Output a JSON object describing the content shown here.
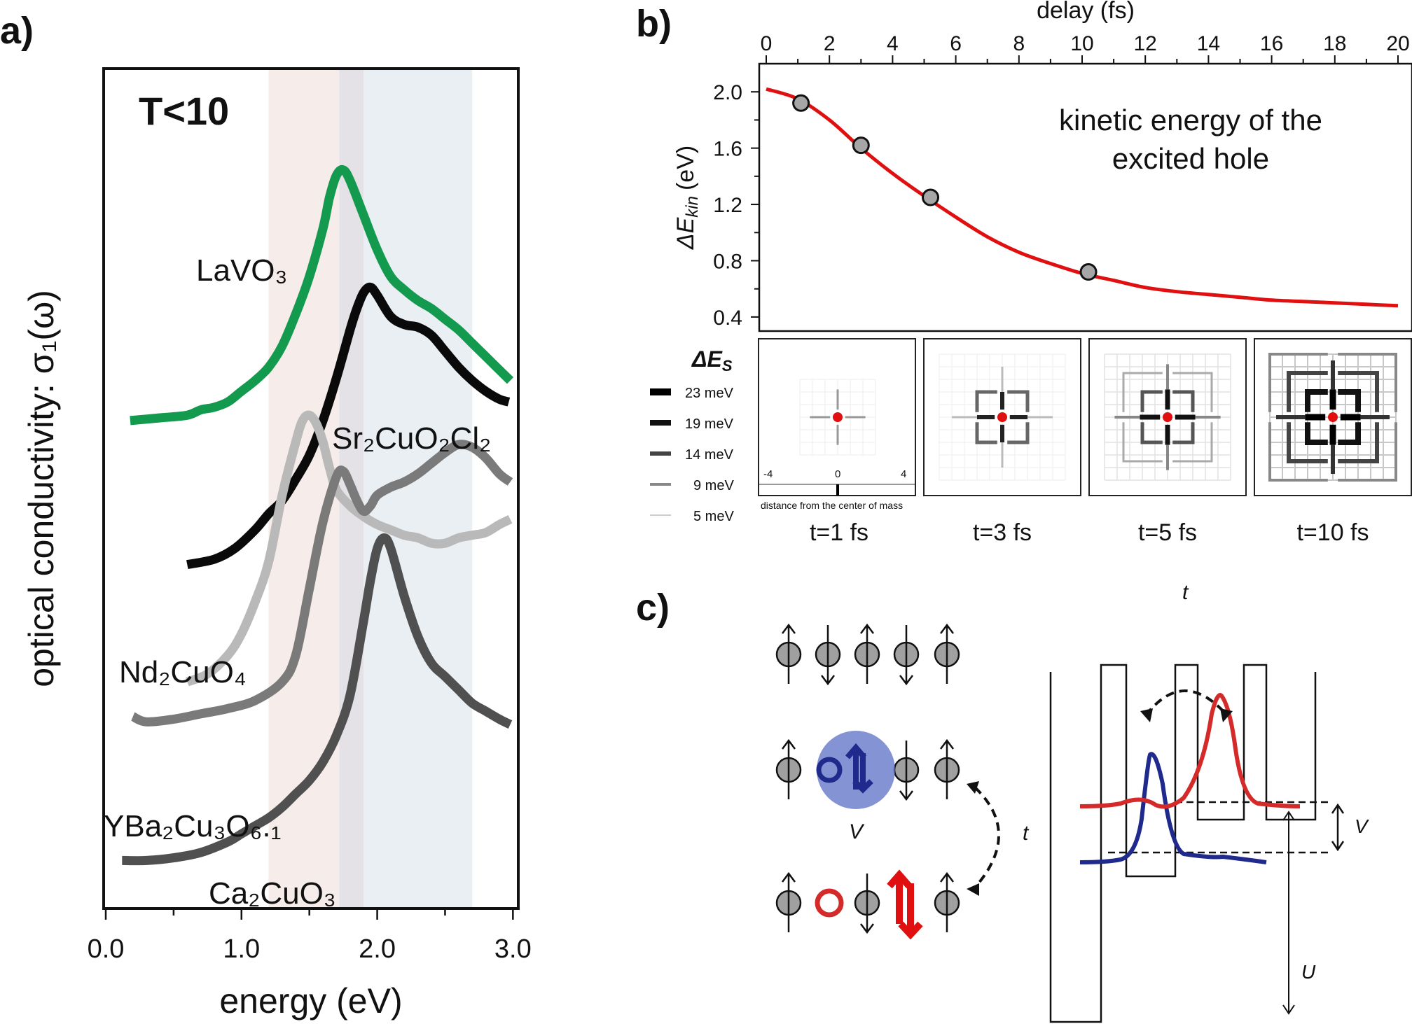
{
  "panel_labels": {
    "a": "a)",
    "b": "b)",
    "c": "c)"
  },
  "colors": {
    "green": "#139a4e",
    "black": "#0a0a0a",
    "lightgray": "#b9b9b9",
    "midgray": "#7a7a7a",
    "darkgray": "#505050",
    "red": "#e01010",
    "blue": "#1f2a8c",
    "marker_fill": "#a6a6a6",
    "band_pink": "#f6ecea",
    "band_gray": "#e4e2e6",
    "band_blue": "#e9eff3"
  },
  "chart_data": [
    {
      "id": "a",
      "type": "line",
      "title": "T<10",
      "xlabel": "energy (eV)",
      "ylabel": "optical conductivity: σ₁(ω)",
      "xlim": [
        0.0,
        3.0
      ],
      "xticks": [
        "0.0",
        "1.0",
        "2.0",
        "3.0"
      ],
      "y_units": "arbitrary (curves offset)",
      "bands_eV": [
        [
          1.2,
          1.72
        ],
        [
          1.72,
          1.9
        ],
        [
          1.9,
          2.7
        ]
      ],
      "series": [
        {
          "name": "LaVO₃",
          "color_key": "green",
          "x": [
            0.18,
            0.4,
            0.6,
            0.7,
            0.8,
            0.9,
            1.0,
            1.1,
            1.2,
            1.3,
            1.4,
            1.5,
            1.6,
            1.65,
            1.7,
            1.75,
            1.8,
            1.9,
            2.0,
            2.1,
            2.2,
            2.3,
            2.4,
            2.5,
            2.6,
            2.7,
            2.8,
            2.9,
            2.98
          ],
          "y": [
            0.08,
            0.09,
            0.1,
            0.12,
            0.13,
            0.15,
            0.19,
            0.23,
            0.28,
            0.36,
            0.48,
            0.62,
            0.8,
            0.92,
            1.0,
            1.02,
            0.98,
            0.85,
            0.72,
            0.62,
            0.57,
            0.53,
            0.5,
            0.46,
            0.42,
            0.37,
            0.32,
            0.27,
            0.23
          ]
        },
        {
          "name": "Sr₂CuO₂Cl₂",
          "color_key": "black",
          "x": [
            0.6,
            0.8,
            0.95,
            1.1,
            1.2,
            1.3,
            1.4,
            1.5,
            1.6,
            1.7,
            1.8,
            1.85,
            1.9,
            1.95,
            2.0,
            2.1,
            2.2,
            2.3,
            2.4,
            2.5,
            2.6,
            2.7,
            2.8,
            2.9,
            2.97
          ],
          "y": [
            -0.46,
            -0.44,
            -0.4,
            -0.33,
            -0.27,
            -0.22,
            -0.14,
            -0.05,
            0.08,
            0.24,
            0.42,
            0.5,
            0.56,
            0.58,
            0.55,
            0.47,
            0.44,
            0.43,
            0.4,
            0.34,
            0.28,
            0.23,
            0.19,
            0.16,
            0.15
          ]
        },
        {
          "name": "Nd₂CuO₄",
          "color_key": "lightgray",
          "x": [
            0.6,
            0.75,
            0.9,
            1.0,
            1.1,
            1.2,
            1.3,
            1.4,
            1.45,
            1.5,
            1.55,
            1.6,
            1.65,
            1.7,
            1.8,
            1.9,
            2.0,
            2.1,
            2.2,
            2.3,
            2.4,
            2.5,
            2.6,
            2.7,
            2.8,
            2.9,
            2.98
          ],
          "y": [
            -0.9,
            -0.87,
            -0.8,
            -0.72,
            -0.6,
            -0.45,
            -0.2,
            0.0,
            0.08,
            0.1,
            0.07,
            0.0,
            -0.1,
            -0.18,
            -0.24,
            -0.28,
            -0.31,
            -0.33,
            -0.35,
            -0.36,
            -0.38,
            -0.38,
            -0.36,
            -0.35,
            -0.34,
            -0.31,
            -0.29
          ]
        },
        {
          "name": "YBa₂Cu₃O₆.₁",
          "color_key": "midgray",
          "x": [
            0.2,
            0.3,
            0.5,
            0.7,
            0.9,
            1.1,
            1.3,
            1.4,
            1.5,
            1.6,
            1.7,
            1.75,
            1.8,
            1.85,
            1.9,
            1.95,
            2.0,
            2.1,
            2.2,
            2.3,
            2.4,
            2.5,
            2.6,
            2.7,
            2.8,
            2.9,
            2.98
          ],
          "y": [
            -1.03,
            -1.05,
            -1.04,
            -1.02,
            -1.0,
            -0.97,
            -0.9,
            -0.8,
            -0.55,
            -0.3,
            -0.13,
            -0.11,
            -0.16,
            -0.22,
            -0.26,
            -0.24,
            -0.2,
            -0.17,
            -0.15,
            -0.12,
            -0.08,
            -0.04,
            -0.01,
            -0.02,
            -0.06,
            -0.12,
            -0.15
          ]
        },
        {
          "name": "Ca₂CuO₃",
          "color_key": "darkgray",
          "x": [
            0.12,
            0.3,
            0.5,
            0.7,
            0.9,
            1.0,
            1.1,
            1.2,
            1.3,
            1.4,
            1.5,
            1.6,
            1.7,
            1.8,
            1.9,
            1.95,
            2.0,
            2.05,
            2.1,
            2.2,
            2.3,
            2.4,
            2.5,
            2.6,
            2.7,
            2.8,
            2.9,
            2.98
          ],
          "y": [
            -1.57,
            -1.57,
            -1.56,
            -1.54,
            -1.5,
            -1.47,
            -1.44,
            -1.41,
            -1.37,
            -1.32,
            -1.27,
            -1.2,
            -1.1,
            -0.95,
            -0.67,
            -0.52,
            -0.4,
            -0.36,
            -0.4,
            -0.58,
            -0.73,
            -0.83,
            -0.88,
            -0.93,
            -0.98,
            -1.01,
            -1.04,
            -1.06
          ]
        }
      ],
      "ylim": [
        -1.75,
        1.4
      ]
    },
    {
      "id": "b",
      "type": "line",
      "xlabel": "delay (fs)",
      "ylabel": "ΔE",
      "ylabel_sub": "kin",
      "ylabel_unit": "(eV)",
      "xlim": [
        0,
        20
      ],
      "ylim": [
        0.3,
        2.2
      ],
      "xticks": [
        "0",
        "2",
        "4",
        "6",
        "8",
        "10",
        "12",
        "14",
        "16",
        "18",
        "20"
      ],
      "yticks": [
        "0.4",
        "0.8",
        "1.2",
        "1.6",
        "2.0"
      ],
      "annotation": [
        "kinetic energy of the",
        "excited hole"
      ],
      "series": [
        {
          "color_key": "red",
          "x": [
            0,
            1,
            2,
            3,
            4,
            5,
            6,
            7,
            8,
            9,
            10,
            11,
            12,
            13,
            14,
            15,
            16,
            17,
            18,
            19,
            20
          ],
          "y": [
            2.02,
            1.95,
            1.8,
            1.6,
            1.42,
            1.26,
            1.11,
            0.97,
            0.86,
            0.78,
            0.71,
            0.66,
            0.61,
            0.58,
            0.56,
            0.54,
            0.52,
            0.51,
            0.5,
            0.49,
            0.48
          ]
        },
        {
          "type": "scatter",
          "color_key": "marker_fill",
          "x": [
            1.1,
            3.0,
            5.2,
            10.2
          ],
          "y": [
            1.92,
            1.62,
            1.25,
            0.72
          ]
        }
      ]
    }
  ],
  "panel_b_maps": {
    "legend_title": "ΔE",
    "legend_title_sub": "S",
    "legend": [
      "23 meV",
      "19 meV",
      "14 meV",
      "9 meV",
      "5 meV"
    ],
    "axis_ticks": [
      "-4",
      "0",
      "4"
    ],
    "axis_caption": "distance from the center of mass",
    "captions": [
      "t=1 fs",
      "t=3 fs",
      "t=5 fs",
      "t=10 fs"
    ]
  },
  "panel_c": {
    "labels": {
      "t_top": "t",
      "t_side": "t",
      "V_blob": "V",
      "V_gap": "V",
      "U": "U"
    }
  }
}
